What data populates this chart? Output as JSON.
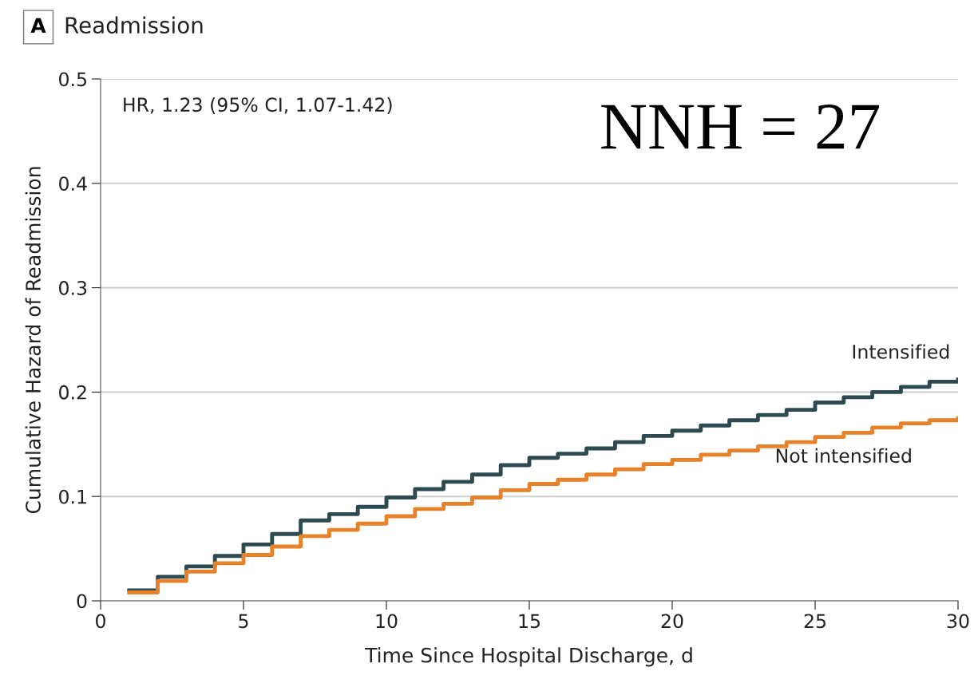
{
  "chart_data": {
    "type": "step",
    "title": "Readmission",
    "xlabel": "Time Since Hospital Discharge, d",
    "ylabel": "Cumulative Hazard of Readmission",
    "annotations": [
      "A",
      "HR, 1.23 (95% CI, 1.07-1.42)",
      "NNH = 27"
    ],
    "x": [
      1,
      2,
      3,
      4,
      5,
      6,
      7,
      8,
      9,
      10,
      11,
      12,
      13,
      14,
      15,
      16,
      17,
      18,
      19,
      20,
      21,
      22,
      23,
      24,
      25,
      26,
      27,
      28,
      29,
      30
    ],
    "series": [
      {
        "name": "Intensified",
        "color": "#2d4a50",
        "values": [
          0.01,
          0.023,
          0.033,
          0.043,
          0.054,
          0.064,
          0.077,
          0.083,
          0.09,
          0.099,
          0.107,
          0.114,
          0.121,
          0.13,
          0.137,
          0.141,
          0.146,
          0.152,
          0.158,
          0.163,
          0.168,
          0.173,
          0.178,
          0.183,
          0.19,
          0.195,
          0.2,
          0.205,
          0.21,
          0.212
        ]
      },
      {
        "name": "Not intensified",
        "color": "#e8822a",
        "values": [
          0.008,
          0.019,
          0.028,
          0.036,
          0.044,
          0.052,
          0.062,
          0.068,
          0.074,
          0.081,
          0.088,
          0.093,
          0.099,
          0.106,
          0.112,
          0.116,
          0.121,
          0.126,
          0.131,
          0.135,
          0.14,
          0.144,
          0.148,
          0.152,
          0.157,
          0.161,
          0.166,
          0.17,
          0.173,
          0.175
        ]
      }
    ],
    "xlim": [
      0,
      30
    ],
    "xticks": [
      0,
      5,
      10,
      15,
      20,
      25,
      30
    ],
    "ylim": [
      0,
      0.5
    ],
    "yticks": [
      {
        "value": 0,
        "label": "0"
      },
      0.1,
      0.2,
      0.3,
      0.4,
      0.5
    ],
    "grid": "y",
    "legend": false
  }
}
